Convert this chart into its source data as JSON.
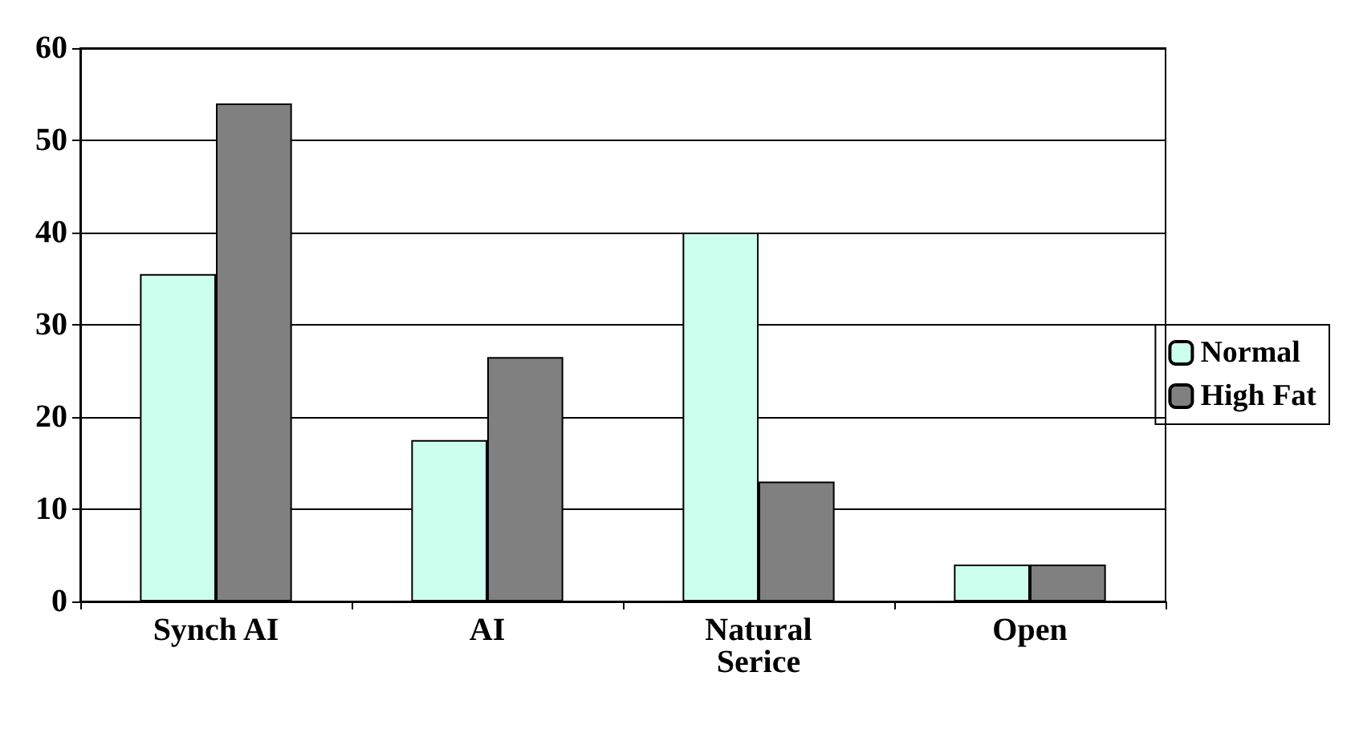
{
  "chart_data": {
    "type": "bar",
    "categories": [
      "Synch AI",
      "AI",
      "Natural\nSerice",
      "Open"
    ],
    "series": [
      {
        "name": "Normal",
        "color": "#ccffee",
        "values": [
          35.5,
          17.5,
          40,
          4
        ]
      },
      {
        "name": "High Fat",
        "color": "#808080",
        "values": [
          54,
          26.5,
          13,
          4
        ]
      }
    ],
    "ylim": [
      0,
      60
    ],
    "yticks": [
      0,
      10,
      20,
      30,
      40,
      50,
      60
    ],
    "grid": "y",
    "legend": "right"
  }
}
